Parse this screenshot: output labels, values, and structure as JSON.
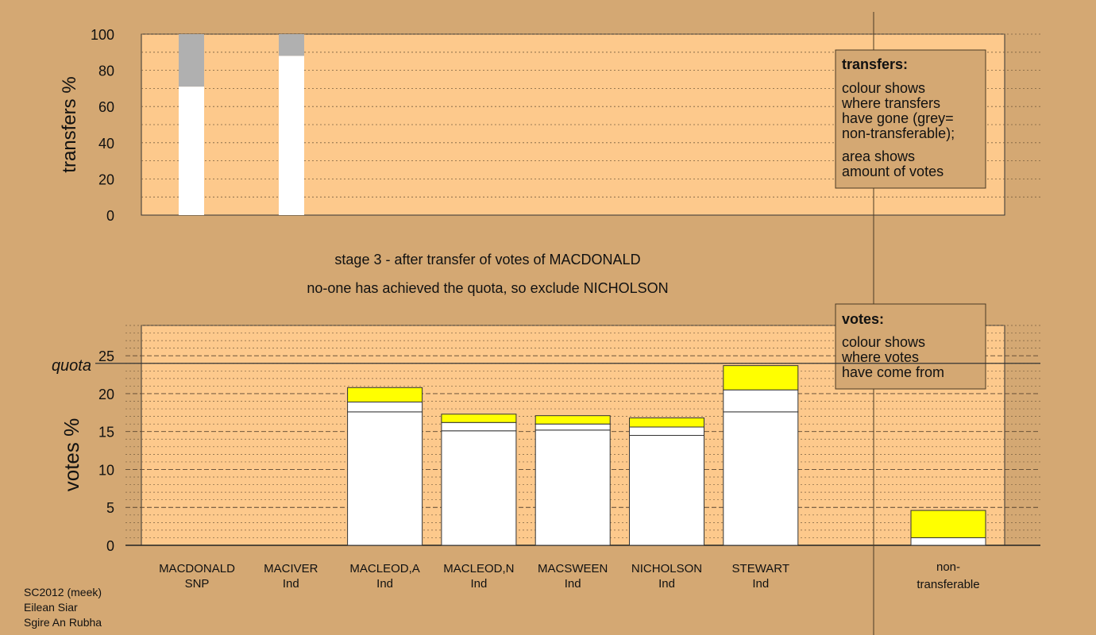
{
  "colors": {
    "background": "#d4a873",
    "plot_bg": "#fdc98c",
    "white": "#ffffff",
    "yellow": "#ffff00",
    "grey": "#b0b0b0"
  },
  "chart_data": [
    {
      "type": "bar",
      "ylabel": "transfers %",
      "ylim": [
        0,
        100
      ],
      "yticks": [
        0,
        20,
        40,
        60,
        80,
        100
      ],
      "stacked": true,
      "categories": [
        "MACDONALD",
        "MACIVER"
      ],
      "series": [
        {
          "color": "white",
          "values": [
            71,
            88
          ]
        },
        {
          "color": "grey",
          "values": [
            29,
            12
          ]
        }
      ],
      "legend": {
        "title": "transfers:",
        "lines1": [
          "colour shows",
          "where transfers",
          "have gone (grey=",
          "non-transferable);"
        ],
        "lines2": [
          "area shows",
          "amount of votes"
        ]
      }
    },
    {
      "type": "bar",
      "ylabel": "votes %",
      "ylim": [
        0,
        29
      ],
      "yticks": [
        0,
        5,
        10,
        15,
        20,
        25
      ],
      "quota": 24,
      "quota_label": "quota",
      "stacked": true,
      "candidates": [
        {
          "name": "MACDONALD",
          "party": "SNP",
          "segments": []
        },
        {
          "name": "MACIVER",
          "party": "Ind",
          "segments": []
        },
        {
          "name": "MACLEOD,A",
          "party": "Ind",
          "segments": [
            {
              "color": "white",
              "value": 17.6
            },
            {
              "color": "white",
              "value": 1.3
            },
            {
              "color": "yellow",
              "value": 1.9
            }
          ]
        },
        {
          "name": "MACLEOD,N",
          "party": "Ind",
          "segments": [
            {
              "color": "white",
              "value": 15.1
            },
            {
              "color": "white",
              "value": 1.1
            },
            {
              "color": "yellow",
              "value": 1.1
            }
          ]
        },
        {
          "name": "MACSWEEN",
          "party": "Ind",
          "segments": [
            {
              "color": "white",
              "value": 15.2
            },
            {
              "color": "white",
              "value": 0.8
            },
            {
              "color": "yellow",
              "value": 1.1
            }
          ]
        },
        {
          "name": "NICHOLSON",
          "party": "Ind",
          "segments": [
            {
              "color": "white",
              "value": 14.5
            },
            {
              "color": "white",
              "value": 1.1
            },
            {
              "color": "yellow",
              "value": 1.2
            }
          ]
        },
        {
          "name": "STEWART",
          "party": "Ind",
          "segments": [
            {
              "color": "white",
              "value": 17.6
            },
            {
              "color": "white",
              "value": 2.9
            },
            {
              "color": "yellow",
              "value": 3.2
            }
          ]
        }
      ],
      "nontransferable": {
        "label1": "non-",
        "label2": "transferable",
        "segments": [
          {
            "color": "white",
            "value": 1.0
          },
          {
            "color": "yellow",
            "value": 3.6
          }
        ]
      },
      "legend": {
        "title": "votes:",
        "lines": [
          "colour shows",
          "where votes",
          "have come from"
        ]
      }
    }
  ],
  "stage_text": {
    "line1": "stage 3 - after transfer of votes of MACDONALD",
    "line2": "no-one has achieved the quota, so exclude NICHOLSON"
  },
  "footer": {
    "line1": "SC2012 (meek)",
    "line2": "Eilean Siar",
    "line3": "Sgire An Rubha"
  }
}
